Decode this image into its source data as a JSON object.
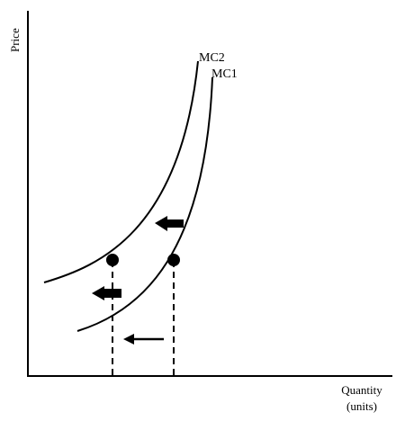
{
  "diagram": {
    "axes": {
      "y_label": "Price",
      "x_label_line1": "Quantity",
      "x_label_line2": "(units)"
    },
    "curves": [
      {
        "name": "MC2"
      },
      {
        "name": "MC1"
      }
    ],
    "arrows": [
      {
        "direction": "left",
        "style": "block"
      },
      {
        "direction": "left",
        "style": "block"
      },
      {
        "direction": "left",
        "style": "thin"
      }
    ],
    "points": [
      {
        "on_curve": "MC2",
        "marker": "filled-circle",
        "guide": "dashed-vertical-to-x-axis"
      },
      {
        "on_curve": "MC1",
        "marker": "filled-circle",
        "guide": "dashed-vertical-to-x-axis"
      }
    ],
    "colors": {
      "ink": "#000000",
      "background": "#ffffff"
    }
  }
}
